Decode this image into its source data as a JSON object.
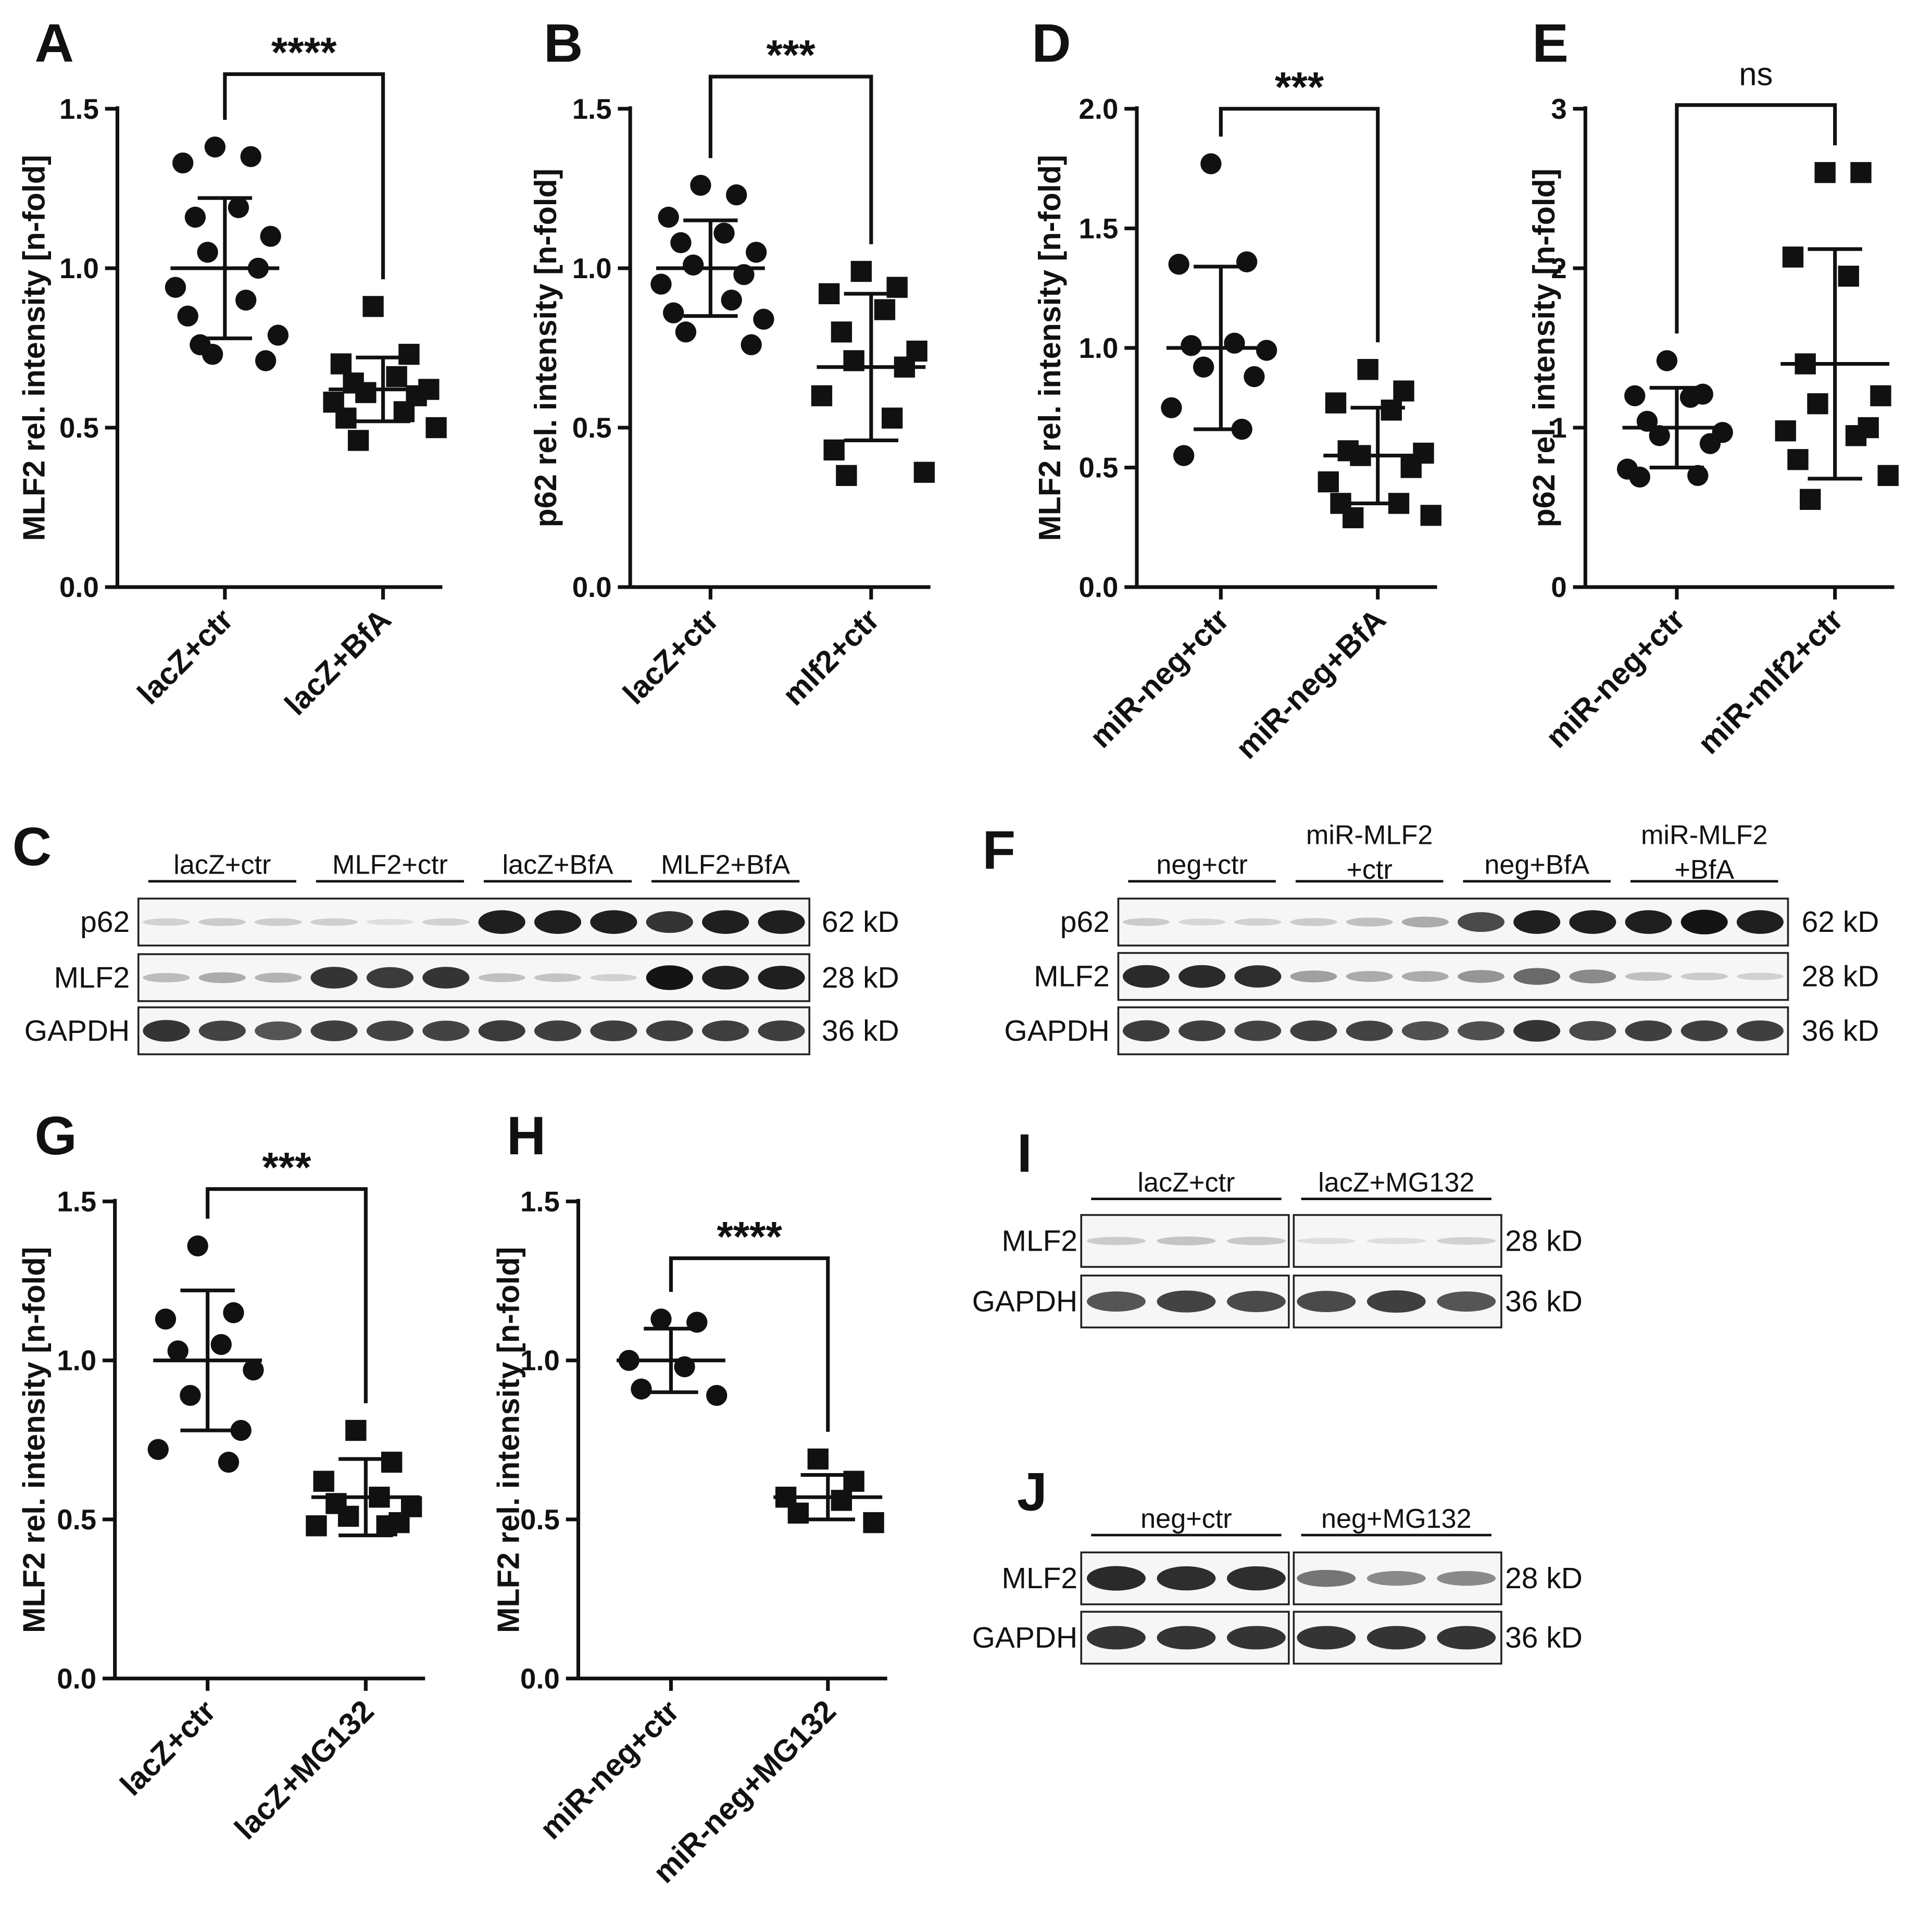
{
  "charts": [
    {
      "letter": "A",
      "ylabel": "MLF2 rel. intensity [n-fold]",
      "yticks": [
        "0.0",
        "0.5",
        "1.0",
        "1.5"
      ],
      "categories": [
        "lacZ+ctr",
        "lacZ+BfA"
      ],
      "significance": "****",
      "ymax": 1.5,
      "ytickvals": [
        0,
        0.5,
        1.0,
        1.5
      ],
      "groups": [
        {
          "marker": "circle",
          "mean": 1.0,
          "sd": 0.22,
          "values": [
            1.38,
            1.35,
            1.33,
            1.19,
            1.16,
            1.1,
            1.05,
            1.0,
            0.94,
            0.9,
            0.85,
            0.79,
            0.76,
            0.71,
            0.73
          ]
        },
        {
          "marker": "square",
          "mean": 0.62,
          "sd": 0.1,
          "values": [
            0.88,
            0.73,
            0.7,
            0.66,
            0.64,
            0.62,
            0.61,
            0.6,
            0.58,
            0.55,
            0.53,
            0.5,
            0.46
          ]
        }
      ]
    },
    {
      "letter": "B",
      "ylabel": "p62 rel. intensity [n-fold]",
      "yticks": [
        "0.0",
        "0.5",
        "1.0",
        "1.5"
      ],
      "categories": [
        "lacZ+ctr",
        "mlf2+ctr"
      ],
      "significance": "***",
      "ymax": 1.5,
      "ytickvals": [
        0,
        0.5,
        1.0,
        1.5
      ],
      "groups": [
        {
          "marker": "circle",
          "mean": 1.0,
          "sd": 0.15,
          "values": [
            1.26,
            1.23,
            1.16,
            1.11,
            1.08,
            1.05,
            1.01,
            0.98,
            0.95,
            0.9,
            0.86,
            0.84,
            0.8,
            0.76
          ]
        },
        {
          "marker": "square",
          "mean": 0.69,
          "sd": 0.23,
          "values": [
            0.99,
            0.94,
            0.92,
            0.87,
            0.8,
            0.74,
            0.71,
            0.69,
            0.6,
            0.53,
            0.43,
            0.36,
            0.35
          ]
        }
      ]
    },
    {
      "letter": "D",
      "ylabel": "MLF2 rel. intensity [n-fold]",
      "yticks": [
        "0.0",
        "0.5",
        "1.0",
        "1.5",
        "2.0"
      ],
      "categories": [
        "miR-neg+ctr",
        "miR-neg+BfA"
      ],
      "significance": "***",
      "ymax": 2.0,
      "ytickvals": [
        0,
        0.5,
        1.0,
        1.5,
        2.0
      ],
      "groups": [
        {
          "marker": "circle",
          "mean": 1.0,
          "sd": 0.34,
          "values": [
            1.77,
            1.36,
            1.35,
            1.02,
            1.01,
            0.99,
            0.92,
            0.88,
            0.75,
            0.66,
            0.55
          ]
        },
        {
          "marker": "square",
          "mean": 0.55,
          "sd": 0.2,
          "values": [
            0.91,
            0.82,
            0.77,
            0.74,
            0.57,
            0.56,
            0.55,
            0.5,
            0.44,
            0.35,
            0.35,
            0.3,
            0.29
          ]
        }
      ]
    },
    {
      "letter": "E",
      "ylabel": "p62 rel. intensity [n-fold]",
      "yticks": [
        "0",
        "1",
        "2",
        "3"
      ],
      "categories": [
        "miR-neg+ctr",
        "miR-mlf2+ctr"
      ],
      "significance": "ns",
      "ymax": 3,
      "ytickvals": [
        0,
        1,
        2,
        3
      ],
      "groups": [
        {
          "marker": "circle",
          "mean": 1.0,
          "sd": 0.25,
          "values": [
            1.42,
            1.21,
            1.2,
            1.19,
            1.04,
            0.97,
            0.95,
            0.9,
            0.74,
            0.7,
            0.69
          ]
        },
        {
          "marker": "square",
          "mean": 1.4,
          "sd": 0.72,
          "values": [
            2.6,
            2.6,
            2.07,
            1.95,
            1.4,
            1.2,
            1.15,
            1.0,
            0.98,
            0.95,
            0.8,
            0.7,
            0.55
          ]
        }
      ]
    },
    {
      "letter": "G",
      "ylabel": "MLF2 rel. intensity [n-fold]",
      "yticks": [
        "0.0",
        "0.5",
        "1.0",
        "1.5"
      ],
      "categories": [
        "lacZ+ctr",
        "lacZ+MG132"
      ],
      "significance": "***",
      "ymax": 1.5,
      "ytickvals": [
        0,
        0.5,
        1.0,
        1.5
      ],
      "groups": [
        {
          "marker": "circle",
          "mean": 1.0,
          "sd": 0.22,
          "values": [
            1.36,
            1.15,
            1.13,
            1.05,
            1.03,
            0.97,
            0.89,
            0.78,
            0.72,
            0.68
          ]
        },
        {
          "marker": "square",
          "mean": 0.57,
          "sd": 0.12,
          "values": [
            0.78,
            0.68,
            0.62,
            0.57,
            0.55,
            0.54,
            0.51,
            0.49,
            0.48,
            0.48
          ]
        }
      ]
    },
    {
      "letter": "H",
      "ylabel": "MLF2 rel. intensity [n-fold]",
      "yticks": [
        "0.0",
        "0.5",
        "1.0",
        "1.5"
      ],
      "categories": [
        "miR-neg+ctr",
        "miR-neg+MG132"
      ],
      "significance": "****",
      "ymax": 1.5,
      "ytickvals": [
        0,
        0.5,
        1.0,
        1.5
      ],
      "groups": [
        {
          "marker": "circle",
          "mean": 1.0,
          "sd": 0.1,
          "values": [
            1.13,
            1.12,
            1.0,
            0.98,
            0.91,
            0.89
          ]
        },
        {
          "marker": "square",
          "mean": 0.57,
          "sd": 0.07,
          "values": [
            0.69,
            0.62,
            0.57,
            0.56,
            0.52,
            0.49
          ]
        }
      ]
    }
  ],
  "blots": [
    {
      "letter": "C",
      "groups": [
        {
          "label": "lacZ+ctr"
        },
        {
          "label": "MLF2+ctr"
        },
        {
          "label": "lacZ+BfA"
        },
        {
          "label": "MLF2+BfA"
        }
      ],
      "rows": [
        {
          "label": "p62",
          "kd": "62 kD",
          "intensity": [
            0.12,
            0.15,
            0.14,
            0.13,
            0.06,
            0.12,
            0.95,
            0.95,
            0.95,
            0.85,
            0.95,
            0.95
          ]
        },
        {
          "label": "MLF2",
          "kd": "28 kD",
          "intensity": [
            0.22,
            0.3,
            0.26,
            0.85,
            0.82,
            0.85,
            0.2,
            0.18,
            0.12,
            1.0,
            0.95,
            0.95
          ]
        },
        {
          "label": "GAPDH",
          "kd": "36 kD",
          "intensity": [
            0.85,
            0.78,
            0.7,
            0.8,
            0.78,
            0.78,
            0.82,
            0.8,
            0.8,
            0.8,
            0.8,
            0.8
          ]
        }
      ]
    },
    {
      "letter": "F",
      "groups": [
        {
          "label": "neg+ctr"
        },
        {
          "label": "miR-MLF2",
          "label2": "+ctr"
        },
        {
          "label": "neg+BfA"
        },
        {
          "label": "miR-MLF2",
          "label2": "+BfA"
        }
      ],
      "rows": [
        {
          "label": "p62",
          "kd": "62 kD",
          "intensity": [
            0.15,
            0.1,
            0.12,
            0.15,
            0.2,
            0.3,
            0.75,
            0.95,
            0.95,
            0.95,
            1.0,
            0.95
          ]
        },
        {
          "label": "MLF2",
          "kd": "28 kD",
          "intensity": [
            0.9,
            0.9,
            0.88,
            0.35,
            0.3,
            0.3,
            0.4,
            0.6,
            0.45,
            0.2,
            0.15,
            0.12
          ]
        },
        {
          "label": "GAPDH",
          "kd": "36 kD",
          "intensity": [
            0.82,
            0.8,
            0.78,
            0.8,
            0.78,
            0.72,
            0.72,
            0.85,
            0.75,
            0.8,
            0.8,
            0.8
          ]
        }
      ]
    },
    {
      "letter": "I",
      "groups": [
        {
          "label": "lacZ+ctr"
        },
        {
          "label": "lacZ+MG132"
        }
      ],
      "rows": [
        {
          "label": "MLF2",
          "kd": "28 kD",
          "intensity": [
            0.15,
            0.18,
            0.16,
            0.06,
            0.06,
            0.12
          ]
        },
        {
          "label": "GAPDH",
          "kd": "36 kD",
          "intensity": [
            0.7,
            0.78,
            0.75,
            0.75,
            0.8,
            0.7
          ]
        }
      ]
    },
    {
      "letter": "J",
      "groups": [
        {
          "label": "neg+ctr"
        },
        {
          "label": "neg+MG132"
        }
      ],
      "rows": [
        {
          "label": "MLF2",
          "kd": "28 kD",
          "intensity": [
            0.9,
            0.88,
            0.88,
            0.55,
            0.45,
            0.45
          ]
        },
        {
          "label": "GAPDH",
          "kd": "36 kD",
          "intensity": [
            0.85,
            0.85,
            0.85,
            0.85,
            0.85,
            0.85
          ]
        }
      ]
    }
  ],
  "chart_data": [
    {
      "panel": "A",
      "type": "scatter",
      "ylabel": "MLF2 rel. intensity [n-fold]",
      "categories": [
        "lacZ+ctr",
        "lacZ+BfA"
      ],
      "ylim": [
        0,
        1.5
      ],
      "significance": "****",
      "series": [
        {
          "name": "lacZ+ctr",
          "mean": 1.0,
          "sd": 0.22,
          "values": [
            1.38,
            1.35,
            1.33,
            1.19,
            1.16,
            1.1,
            1.05,
            1.0,
            0.94,
            0.9,
            0.85,
            0.79,
            0.76,
            0.71,
            0.73
          ]
        },
        {
          "name": "lacZ+BfA",
          "mean": 0.62,
          "sd": 0.1,
          "values": [
            0.88,
            0.73,
            0.7,
            0.66,
            0.64,
            0.62,
            0.61,
            0.6,
            0.58,
            0.55,
            0.53,
            0.5,
            0.46
          ]
        }
      ]
    },
    {
      "panel": "B",
      "type": "scatter",
      "ylabel": "p62 rel. intensity [n-fold]",
      "categories": [
        "lacZ+ctr",
        "mlf2+ctr"
      ],
      "ylim": [
        0,
        1.5
      ],
      "significance": "***",
      "series": [
        {
          "name": "lacZ+ctr",
          "mean": 1.0,
          "sd": 0.15,
          "values": [
            1.26,
            1.23,
            1.16,
            1.11,
            1.08,
            1.05,
            1.01,
            0.98,
            0.95,
            0.9,
            0.86,
            0.84,
            0.8,
            0.76
          ]
        },
        {
          "name": "mlf2+ctr",
          "mean": 0.69,
          "sd": 0.23,
          "values": [
            0.99,
            0.94,
            0.92,
            0.87,
            0.8,
            0.74,
            0.71,
            0.69,
            0.6,
            0.53,
            0.43,
            0.36,
            0.35
          ]
        }
      ]
    },
    {
      "panel": "D",
      "type": "scatter",
      "ylabel": "MLF2 rel. intensity [n-fold]",
      "categories": [
        "miR-neg+ctr",
        "miR-neg+BfA"
      ],
      "ylim": [
        0,
        2.0
      ],
      "significance": "***",
      "series": [
        {
          "name": "miR-neg+ctr",
          "mean": 1.0,
          "sd": 0.34,
          "values": [
            1.77,
            1.36,
            1.35,
            1.02,
            1.01,
            0.99,
            0.92,
            0.88,
            0.75,
            0.66,
            0.55
          ]
        },
        {
          "name": "miR-neg+BfA",
          "mean": 0.55,
          "sd": 0.2,
          "values": [
            0.91,
            0.82,
            0.77,
            0.74,
            0.57,
            0.56,
            0.55,
            0.5,
            0.44,
            0.35,
            0.35,
            0.3,
            0.29
          ]
        }
      ]
    },
    {
      "panel": "E",
      "type": "scatter",
      "ylabel": "p62 rel. intensity [n-fold]",
      "categories": [
        "miR-neg+ctr",
        "miR-mlf2+ctr"
      ],
      "ylim": [
        0,
        3
      ],
      "significance": "ns",
      "series": [
        {
          "name": "miR-neg+ctr",
          "mean": 1.0,
          "sd": 0.25,
          "values": [
            1.42,
            1.21,
            1.2,
            1.19,
            1.04,
            0.97,
            0.95,
            0.9,
            0.74,
            0.7,
            0.69
          ]
        },
        {
          "name": "miR-mlf2+ctr",
          "mean": 1.4,
          "sd": 0.72,
          "values": [
            2.6,
            2.6,
            2.07,
            1.95,
            1.4,
            1.2,
            1.15,
            1.0,
            0.98,
            0.95,
            0.8,
            0.7,
            0.55
          ]
        }
      ]
    },
    {
      "panel": "G",
      "type": "scatter",
      "ylabel": "MLF2 rel. intensity [n-fold]",
      "categories": [
        "lacZ+ctr",
        "lacZ+MG132"
      ],
      "ylim": [
        0,
        1.5
      ],
      "significance": "***",
      "series": [
        {
          "name": "lacZ+ctr",
          "mean": 1.0,
          "sd": 0.22,
          "values": [
            1.36,
            1.15,
            1.13,
            1.05,
            1.03,
            0.97,
            0.89,
            0.78,
            0.72,
            0.68
          ]
        },
        {
          "name": "lacZ+MG132",
          "mean": 0.57,
          "sd": 0.12,
          "values": [
            0.78,
            0.68,
            0.62,
            0.57,
            0.55,
            0.54,
            0.51,
            0.49,
            0.48,
            0.48
          ]
        }
      ]
    },
    {
      "panel": "H",
      "type": "scatter",
      "ylabel": "MLF2 rel. intensity [n-fold]",
      "categories": [
        "miR-neg+ctr",
        "miR-neg+MG132"
      ],
      "ylim": [
        0,
        1.5
      ],
      "significance": "****",
      "series": [
        {
          "name": "miR-neg+ctr",
          "mean": 1.0,
          "sd": 0.1,
          "values": [
            1.13,
            1.12,
            1.0,
            0.98,
            0.91,
            0.89
          ]
        },
        {
          "name": "miR-neg+MG132",
          "mean": 0.57,
          "sd": 0.07,
          "values": [
            0.69,
            0.62,
            0.57,
            0.56,
            0.52,
            0.49
          ]
        }
      ]
    }
  ]
}
